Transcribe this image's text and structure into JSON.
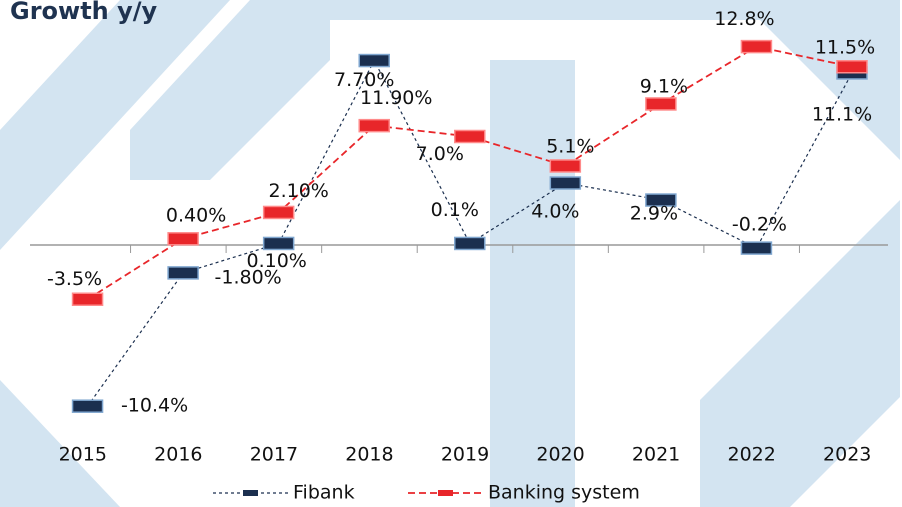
{
  "chart_data": {
    "type": "line",
    "title": "Growth y/y",
    "categories": [
      "2015",
      "2016",
      "2017",
      "2018",
      "2019",
      "2020",
      "2021",
      "2022",
      "2023"
    ],
    "series": [
      {
        "name": "Fibank",
        "color": "#1b2f4f",
        "values": [
          -10.4,
          -1.8,
          0.1,
          11.9,
          0.1,
          4.0,
          2.9,
          -0.2,
          11.1
        ],
        "value_labels": [
          "-10.4%",
          "-1.80%",
          "0.10%",
          "11.90%",
          "0.1%",
          "4.0%",
          "2.9%",
          "-0.2%",
          "11.1%"
        ]
      },
      {
        "name": "Banking system",
        "color": "#e8262a",
        "values": [
          -3.5,
          0.4,
          2.1,
          7.7,
          7.0,
          5.1,
          9.1,
          12.8,
          11.5
        ],
        "value_labels": [
          "-3.5%",
          "0.40%",
          "2.10%",
          "7.70%",
          "7.0%",
          "5.1%",
          "9.1%",
          "12.8%",
          "11.5%"
        ]
      }
    ],
    "ylim": [
      -12,
      14
    ]
  }
}
